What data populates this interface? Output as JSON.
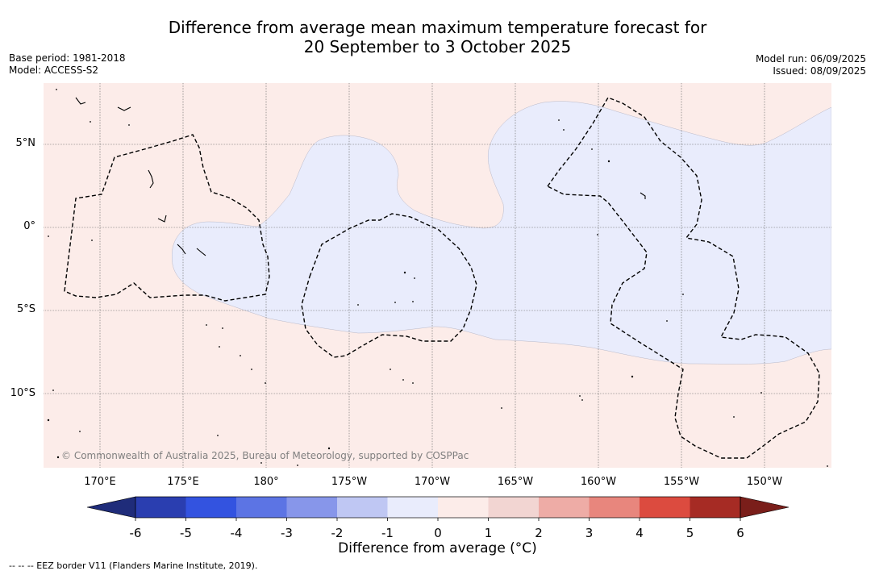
{
  "title": {
    "line1": "Difference from average mean maximum temperature forecast for",
    "line2": "20 September to 3 October 2025"
  },
  "meta": {
    "base_period": "Base period: 1981-2018",
    "model": "Model: ACCESS-S2",
    "model_run": "Model run: 06/09/2025",
    "issued": "Issued: 08/09/2025"
  },
  "lat_labels": [
    "5°N",
    "0°",
    "5°S",
    "10°S"
  ],
  "lon_labels": [
    "170°E",
    "175°E",
    "180°",
    "175°W",
    "170°W",
    "165°W",
    "160°W",
    "155°W",
    "150°W"
  ],
  "credit": "© Commonwealth of Australia 2025, Bureau of Meteorology, supported by COSPPac",
  "colorbar": {
    "title": "Difference from average (°C)",
    "ticks": [
      "-6",
      "-5",
      "-4",
      "-3",
      "-2",
      "-1",
      "0",
      "1",
      "2",
      "3",
      "4",
      "5",
      "6"
    ],
    "colors": {
      "below_min": "#1f2c7a",
      "-6_-5": "#2a3eb0",
      "-5_-4": "#3353e0",
      "-4_-3": "#5c74e4",
      "-3_-2": "#8796ea",
      "-2_-1": "#bfc7f3",
      "-1_0": "#e9ecfc",
      "0_1": "#fcece9",
      "1_2": "#f2d5d2",
      "2_3": "#eeaca6",
      "3_4": "#e8867d",
      "4_5": "#dc4b3f",
      "5_6": "#a62b24",
      "above_max": "#7a1e1a"
    }
  },
  "legend": {
    "eez": "--  --  -- EEZ border V11 (Flanders Marine Institute, 2019)."
  },
  "map_colors": {
    "warm_anomaly_0_1": "#fcece9",
    "cool_anomaly_-1_0": "#e9ecfc"
  }
}
